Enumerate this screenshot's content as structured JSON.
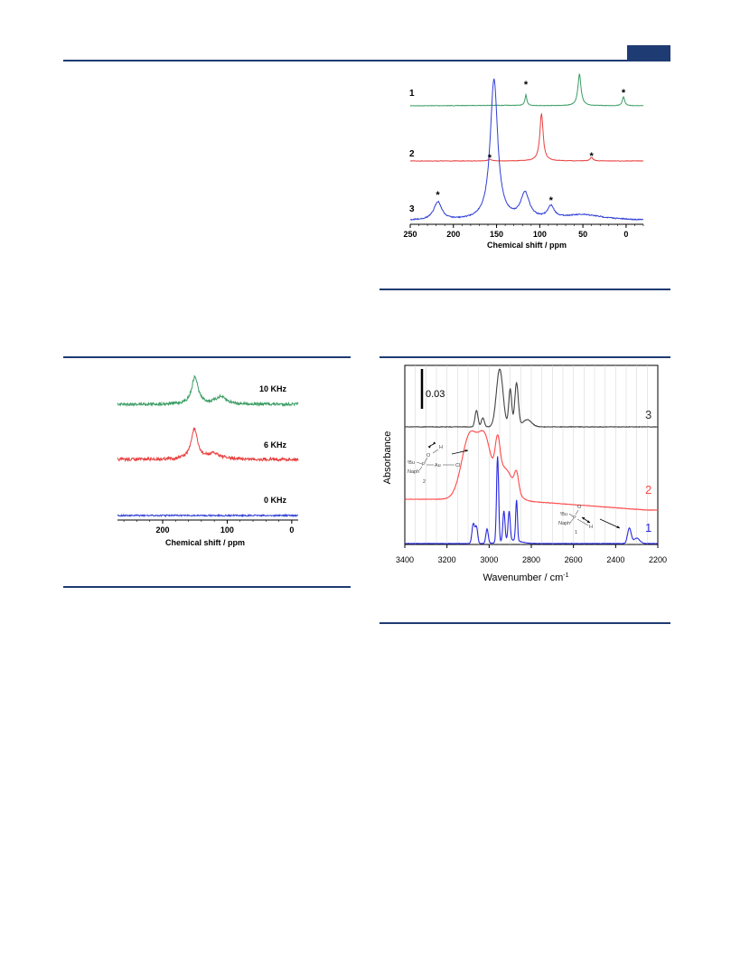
{
  "colors": {
    "header": "#1f3b73",
    "green": "#3a9d63",
    "red": "#e8403f",
    "blue": "#2f3fd6",
    "dark": "#444444",
    "ir_red": "#ff4a4a",
    "ir_blue": "#2a2ae0"
  },
  "chart_data": [
    {
      "type": "line",
      "title": "",
      "xlabel": "Chemical shift / ppm",
      "ylabel": "",
      "xlim": [
        250,
        -20
      ],
      "x_ticks": [
        "250",
        "200",
        "150",
        "100",
        "50",
        "0"
      ],
      "series": [
        {
          "name": "1",
          "peaks_ppm": [
            54,
            116,
            3
          ],
          "spinning_sideband_markers_ppm": [
            116,
            3
          ]
        },
        {
          "name": "2",
          "peaks_ppm": [
            98,
            40
          ],
          "spinning_sideband_markers_ppm": [
            158,
            40
          ]
        },
        {
          "name": "3",
          "peaks_ppm": [
            153,
            117,
            87,
            218
          ],
          "spinning_sideband_markers_ppm": [
            218,
            87
          ]
        }
      ],
      "marker_symbol": "*",
      "grid": false
    },
    {
      "type": "line",
      "title": "",
      "xlabel": "Chemical shift / ppm",
      "ylabel": "",
      "xlim": [
        270,
        -10
      ],
      "x_ticks": [
        "200",
        "100",
        "0"
      ],
      "series": [
        {
          "name": "10 KHz",
          "peak_ppm": 150
        },
        {
          "name": "6 KHz",
          "peak_ppm": 150
        },
        {
          "name": "0 KHz",
          "peak_ppm": null
        }
      ],
      "grid": false
    },
    {
      "type": "line",
      "title": "",
      "xlabel": "Wavenumber / cm",
      "xlabel_superscript": "-1",
      "ylabel": "Absorbance",
      "xlim": [
        3400,
        2200
      ],
      "x_ticks": [
        "3400",
        "3200",
        "3000",
        "2800",
        "2600",
        "2400",
        "2200"
      ],
      "scale_bar": "0.03",
      "series": [
        {
          "name": "3",
          "peaks_cm": [
            2955,
            2900,
            2870,
            3060
          ]
        },
        {
          "name": "2",
          "peaks_cm": [
            3080,
            2960
          ]
        },
        {
          "name": "1",
          "peaks_cm": [
            2960,
            2870,
            3070,
            2340
          ]
        }
      ],
      "inset_labels": {
        "structure_2": [
          "ᵗBu",
          "Naph",
          "P",
          "O",
          "H",
          "Au",
          "Cl",
          "2"
        ],
        "structure_1": [
          "ᵗBu",
          "Naph",
          "P",
          "O",
          "H",
          "1"
        ]
      },
      "grid": true
    }
  ]
}
